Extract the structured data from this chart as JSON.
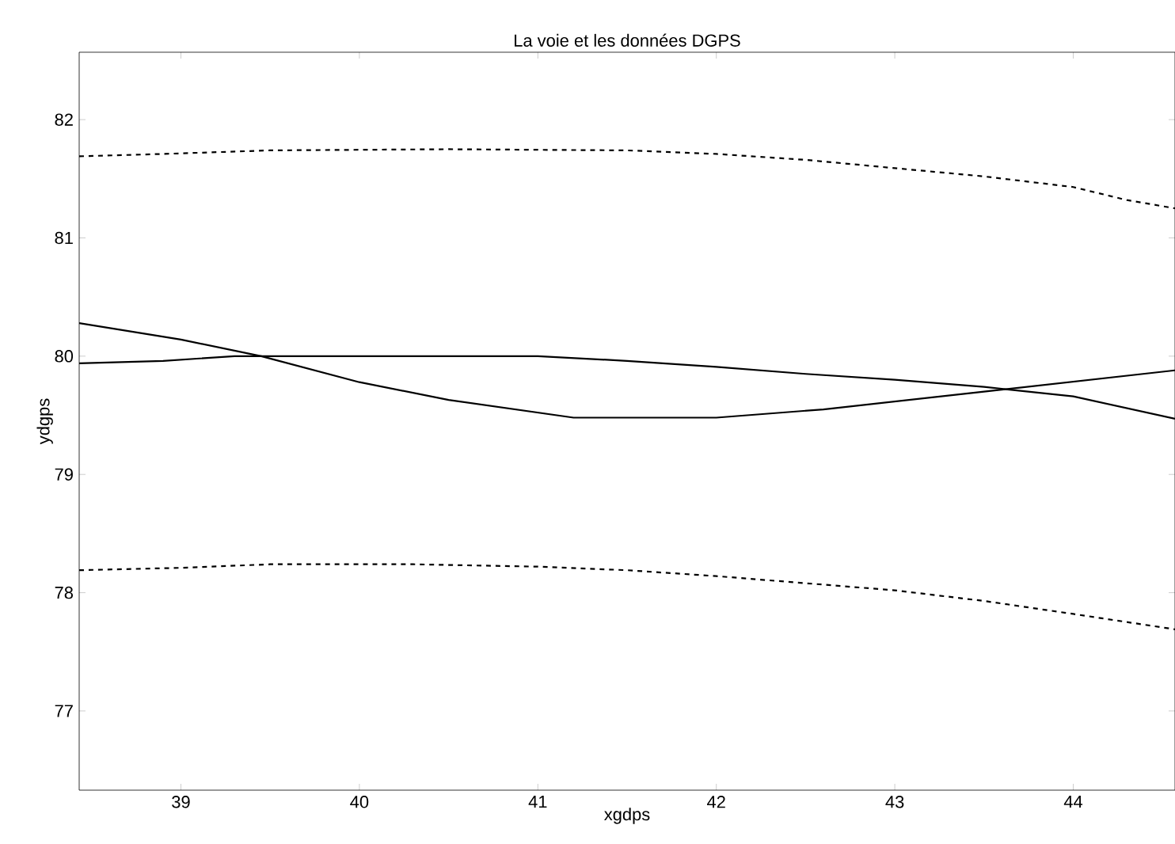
{
  "chart_data": {
    "type": "line",
    "title": "La voie et les données DGPS",
    "xlabel": "xgdps",
    "ylabel": "ydgps",
    "xlim": [
      38.43,
      44.57
    ],
    "ylim": [
      76.33,
      82.57
    ],
    "xticks": [
      39,
      40,
      41,
      42,
      43,
      44
    ],
    "yticks": [
      77,
      78,
      79,
      80,
      81,
      82
    ],
    "grid": false,
    "marker": "none",
    "series": [
      {
        "color": "#000000",
        "line_style": "dashed",
        "x": [
          38.43,
          38.9,
          39.5,
          40.5,
          41.5,
          42,
          42.5,
          43,
          43.5,
          44,
          44.3,
          44.57
        ],
        "values": [
          81.69,
          81.71,
          81.74,
          81.75,
          81.74,
          81.71,
          81.66,
          81.59,
          81.52,
          81.43,
          81.32,
          81.25
        ]
      },
      {
        "color": "#000000",
        "line_style": "dashed",
        "x": [
          38.43,
          39,
          39.5,
          40.3,
          41,
          41.5,
          42,
          42.5,
          43,
          43.5,
          44,
          44.57
        ],
        "values": [
          78.19,
          78.21,
          78.24,
          78.24,
          78.22,
          78.19,
          78.14,
          78.08,
          78.02,
          77.93,
          77.82,
          77.69
        ]
      },
      {
        "color": "#000000",
        "line_style": "solid",
        "x": [
          38.43,
          38.9,
          39.3,
          40.5,
          41,
          41.5,
          42,
          42.5,
          43,
          43.5,
          44,
          44.57
        ],
        "values": [
          79.94,
          79.96,
          80.0,
          80.0,
          80.0,
          79.96,
          79.91,
          79.85,
          79.8,
          79.74,
          79.66,
          79.47
        ]
      },
      {
        "color": "#000000",
        "line_style": "solid",
        "x": [
          38.43,
          39,
          39.45,
          40,
          40.5,
          41.2,
          42,
          42.6,
          43.5,
          44.57
        ],
        "values": [
          80.28,
          80.14,
          80.0,
          79.78,
          79.63,
          79.48,
          79.48,
          79.55,
          79.7,
          79.88
        ]
      }
    ]
  }
}
